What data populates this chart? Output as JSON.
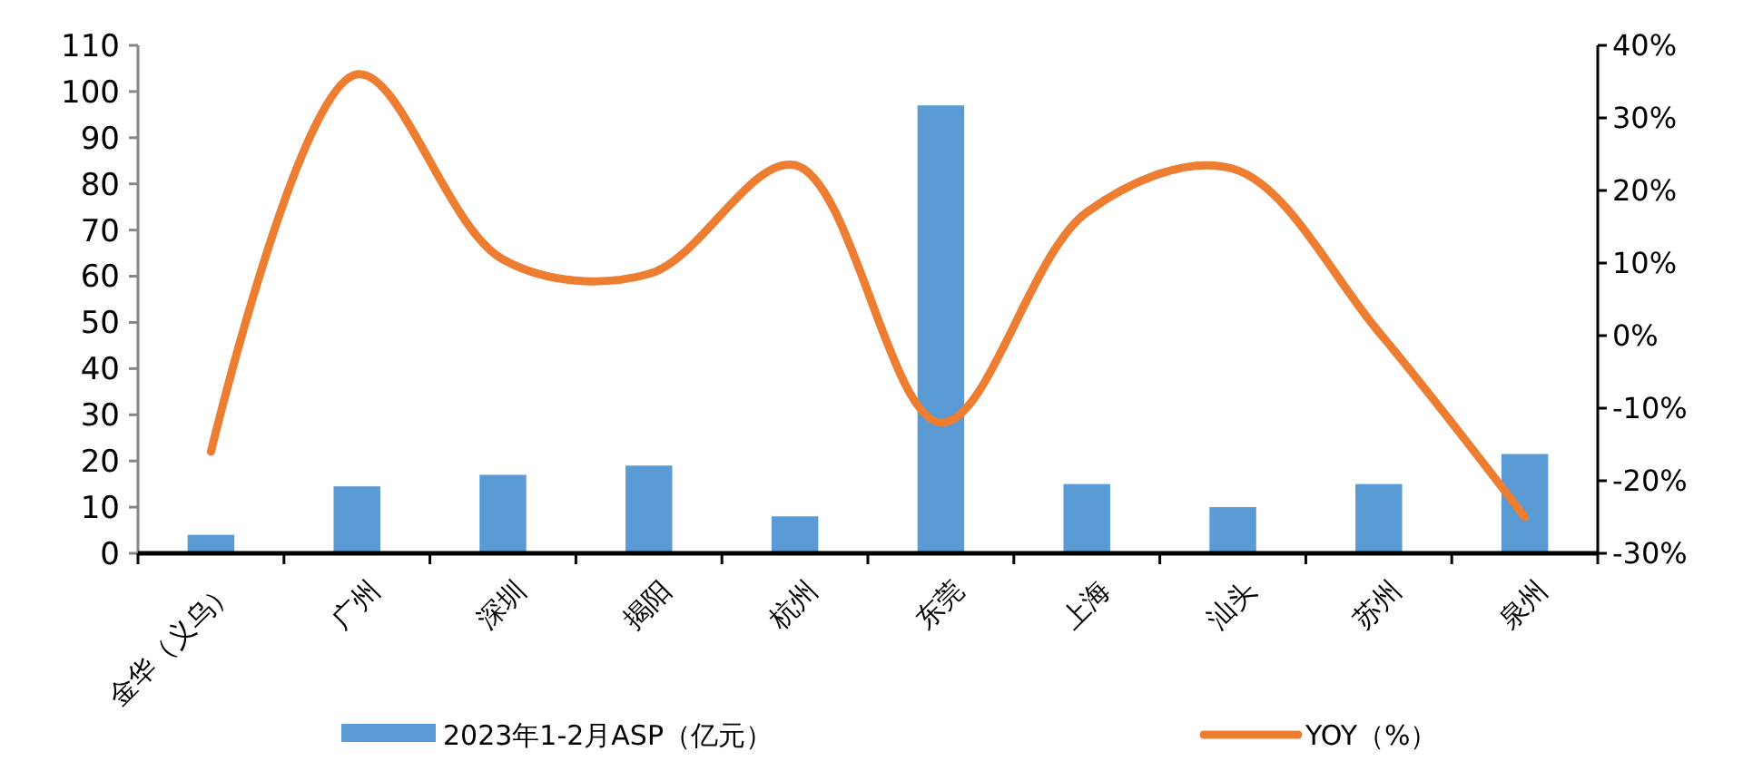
{
  "chart_data": {
    "type": "bar",
    "categories": [
      "金华（义乌）",
      "广州",
      "深圳",
      "揭阳",
      "杭州",
      "东莞",
      "上海",
      "汕头",
      "苏州",
      "泉州"
    ],
    "series": [
      {
        "name": "2023年1-2月ASP（亿元）",
        "color": "#5b9bd5",
        "values": [
          4,
          14.5,
          17,
          19,
          8,
          97,
          15,
          10,
          15,
          21.5
        ]
      },
      {
        "name": "YOY（%）",
        "type": "line",
        "axis": "y2",
        "color": "#ed7d31",
        "values": [
          -16,
          36,
          10.5,
          8.5,
          23.5,
          -12,
          17,
          23,
          0.5,
          -25
        ]
      }
    ],
    "ylim": [
      0,
      110
    ],
    "yticks": [
      0,
      10,
      20,
      30,
      40,
      50,
      60,
      70,
      80,
      90,
      100,
      110
    ],
    "y2lim": [
      -30,
      40
    ],
    "y2ticks": [
      {
        "value": -30,
        "label": "-30%"
      },
      {
        "value": -20,
        "label": "-20%"
      },
      {
        "value": -10,
        "label": "-10%"
      },
      {
        "value": 0,
        "label": "0%"
      },
      {
        "value": 10,
        "label": "10%"
      },
      {
        "value": 20,
        "label": "20%"
      },
      {
        "value": 30,
        "label": "30%"
      },
      {
        "value": 40,
        "label": "40%"
      }
    ],
    "legend": "bottom",
    "grid": false,
    "marker": "none",
    "line_style": "solid"
  }
}
